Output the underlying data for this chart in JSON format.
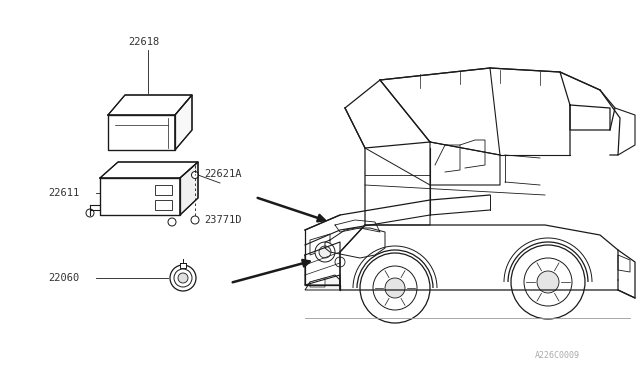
{
  "bg_color": "#ffffff",
  "line_color": "#1a1a1a",
  "label_color": "#333333",
  "watermark_color": "#aaaaaa",
  "watermark_text": "A226C0009",
  "fig_w": 6.4,
  "fig_h": 3.72,
  "dpi": 100
}
